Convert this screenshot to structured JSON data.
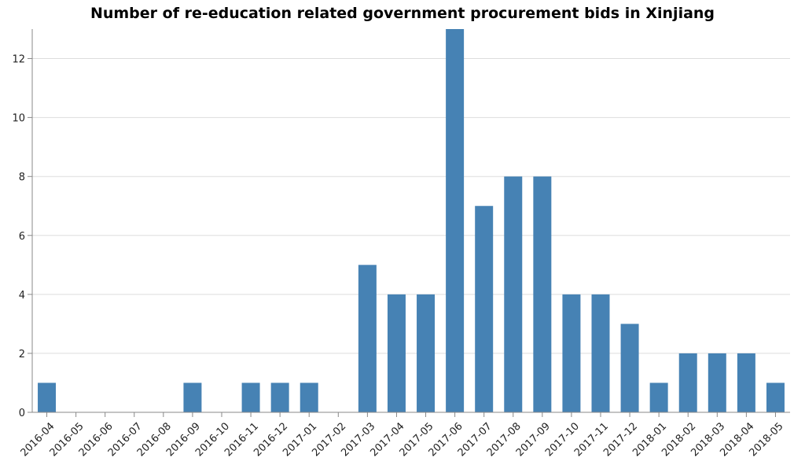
{
  "chart_data": {
    "type": "bar",
    "title": "Number of re-education related government procurement bids in Xinjiang",
    "xlabel": "",
    "ylabel": "",
    "categories": [
      "2016-04",
      "2016-05",
      "2016-06",
      "2016-07",
      "2016-08",
      "2016-09",
      "2016-10",
      "2016-11",
      "2016-12",
      "2017-01",
      "2017-02",
      "2017-03",
      "2017-04",
      "2017-05",
      "2017-06",
      "2017-07",
      "2017-08",
      "2017-09",
      "2017-10",
      "2017-11",
      "2017-12",
      "2018-01",
      "2018-02",
      "2018-03",
      "2018-04",
      "2018-05"
    ],
    "values": [
      1,
      0,
      0,
      0,
      0,
      1,
      0,
      1,
      1,
      1,
      0,
      5,
      4,
      4,
      13,
      7,
      8,
      8,
      4,
      4,
      3,
      1,
      2,
      2,
      2,
      1
    ],
    "ylim": [
      0,
      13
    ],
    "yticks": [
      0,
      2,
      4,
      6,
      8,
      10,
      12
    ],
    "grid": true,
    "bar_color": "#4682b4"
  }
}
